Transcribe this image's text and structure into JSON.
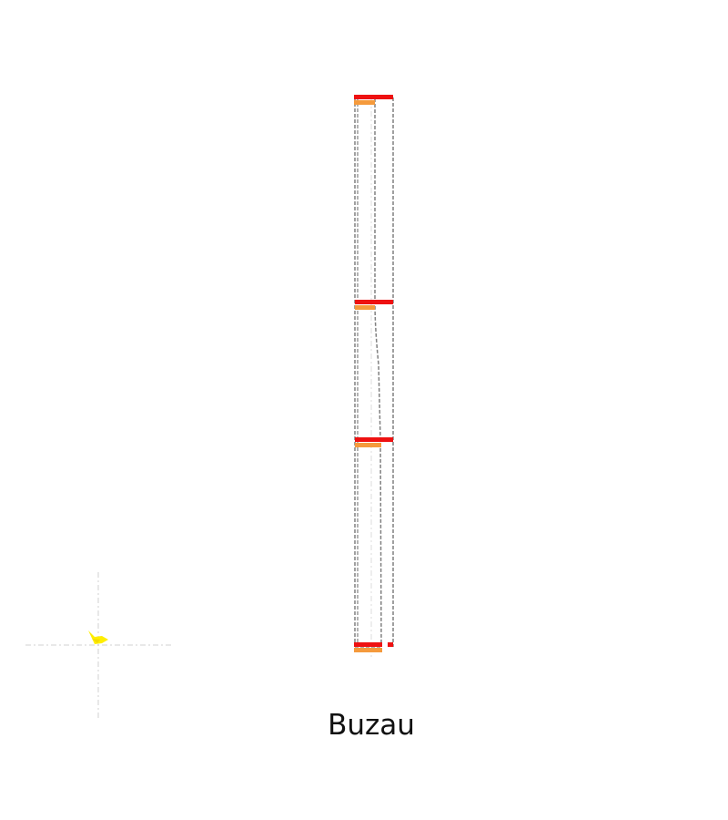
{
  "caption": "Buzau",
  "colors": {
    "dashed_line": "#808080",
    "guide_line": "#d0d0d0",
    "primary_mark": "#ee1111",
    "secondary_mark": "#f59a3c",
    "marker": "#ffee00"
  },
  "marker": {
    "icon": "yellow-bird-icon"
  }
}
